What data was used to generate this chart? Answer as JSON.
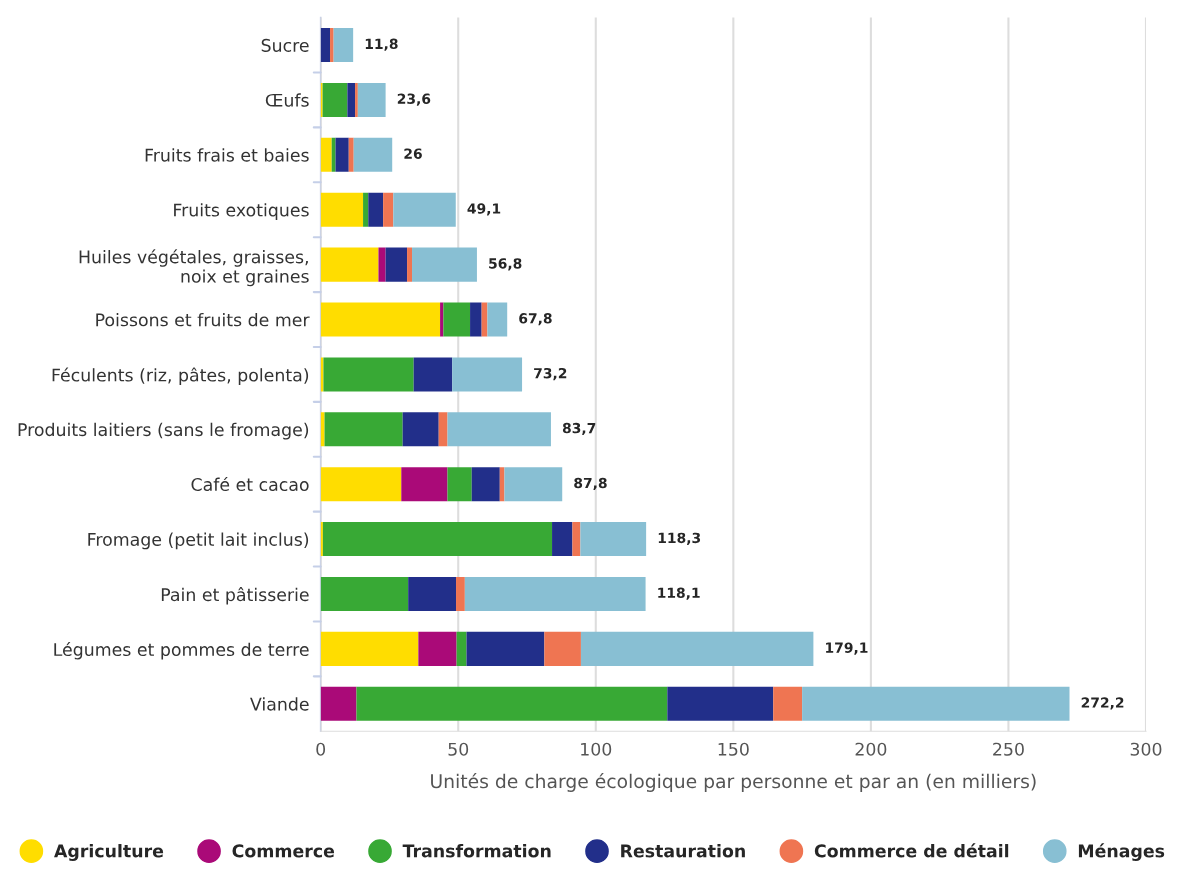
{
  "chart_data": {
    "type": "bar",
    "orientation": "horizontal",
    "stacked": true,
    "xlabel": "Unités de charge écologique par personne et par an (en milliers)",
    "categories": [
      "Sucre",
      "Œufs",
      "Fruits frais et baies",
      "Fruits exotiques",
      "Huiles végétales, graisses,\nnoix et graines",
      "Poissons et fruits de mer",
      "Féculents (riz, pâtes, polenta)",
      "Produits laitiers (sans le fromage)",
      "Café et cacao",
      "Fromage (petit lait inclus)",
      "Pain et pâtisserie",
      "Légumes et pommes de terre",
      "Viande"
    ],
    "series": [
      {
        "name": "Agriculture",
        "color": "#ffdd00",
        "values": [
          0,
          0.7,
          4.0,
          15.4,
          21.0,
          43.4,
          1.0,
          1.4,
          29.3,
          0.8,
          0,
          35.5,
          0
        ]
      },
      {
        "name": "Commerce",
        "color": "#aa0a78",
        "values": [
          0,
          0,
          0,
          0,
          2.6,
          1.2,
          0,
          0,
          16.8,
          0,
          0,
          13.9,
          13
        ]
      },
      {
        "name": "Transformation",
        "color": "#38a935",
        "values": [
          0,
          9.0,
          1.4,
          1.9,
          0,
          9.7,
          32.8,
          28.4,
          8.8,
          83.3,
          31.8,
          3.6,
          113
        ]
      },
      {
        "name": "Restauration",
        "color": "#222f8a",
        "values": [
          3.4,
          2.8,
          4.8,
          5.4,
          7.8,
          4.2,
          14.0,
          13.1,
          10.2,
          7.4,
          17.4,
          28.3,
          38.5
        ]
      },
      {
        "name": "Commerce de détail",
        "color": "#ef7552",
        "values": [
          1.3,
          1.0,
          1.8,
          3.7,
          1.8,
          2.1,
          0,
          3.2,
          1.7,
          2.9,
          3.2,
          13.3,
          10.5
        ]
      },
      {
        "name": "Ménages",
        "color": "#88bfd3",
        "values": [
          7.1,
          10.1,
          14.0,
          22.7,
          23.6,
          7.2,
          25.4,
          37.6,
          21.0,
          23.9,
          65.7,
          84.5,
          97.2
        ]
      }
    ],
    "totals": [
      "11,8",
      "23,6",
      "26",
      "49,1",
      "56,8",
      "67,8",
      "73,2",
      "83,7",
      "87,8",
      "118,3",
      "118,1",
      "179,1",
      "272,2"
    ],
    "xlim": [
      0,
      300
    ],
    "xticks": [
      0,
      50,
      100,
      150,
      200,
      250,
      300
    ],
    "grid": "x",
    "legend": "bottom",
    "marker": "circle"
  }
}
